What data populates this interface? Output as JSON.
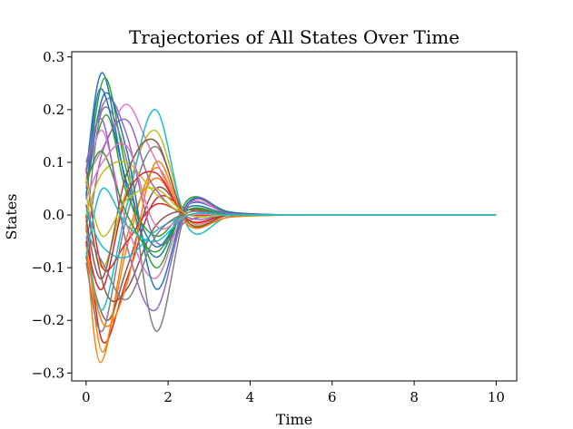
{
  "chart_data": {
    "type": "line",
    "title": "Trajectories of All States Over Time",
    "xlabel": "Time",
    "ylabel": "States",
    "xlim": [
      -0.35,
      10.5
    ],
    "ylim": [
      -0.315,
      0.31
    ],
    "xticks": [
      0,
      2,
      4,
      6,
      8,
      10
    ],
    "xtick_labels": [
      "0",
      "2",
      "4",
      "6",
      "8",
      "10"
    ],
    "yticks": [
      -0.3,
      -0.2,
      -0.1,
      0.0,
      0.1,
      0.2,
      0.3
    ],
    "ytick_labels": [
      "−0.3",
      "−0.2",
      "−0.1",
      "0.0",
      "0.1",
      "0.2",
      "0.3"
    ],
    "grid": false,
    "legend": "none",
    "series_palette": [
      "#1f77b4",
      "#ff7f0e",
      "#2ca02c",
      "#d62728",
      "#9467bd",
      "#8c564b",
      "#e377c2",
      "#7f7f7f",
      "#bcbd22",
      "#17becf"
    ],
    "series": [
      {
        "x": [
          0,
          0.4,
          1.0,
          1.7,
          2.5,
          3.5,
          5.0,
          7.0,
          10.0
        ],
        "y": [
          0.08,
          0.27,
          0.05,
          -0.08,
          0.02,
          0.005,
          0.0,
          0.0,
          0.0
        ]
      },
      {
        "x": [
          0,
          0.35,
          1.0,
          1.7,
          2.5,
          3.5,
          5.0,
          7.0,
          10.0
        ],
        "y": [
          -0.05,
          -0.28,
          -0.06,
          0.09,
          -0.02,
          -0.004,
          0.0,
          0.0,
          0.0
        ]
      },
      {
        "x": [
          0,
          0.45,
          1.0,
          1.7,
          2.5,
          3.5,
          5.0,
          7.0,
          10.0
        ],
        "y": [
          0.05,
          0.26,
          0.08,
          -0.1,
          0.03,
          0.006,
          0.0,
          0.0,
          0.0
        ]
      },
      {
        "x": [
          0,
          0.4,
          1.0,
          1.7,
          2.5,
          3.5,
          5.0,
          7.0,
          10.0
        ],
        "y": [
          0.0,
          -0.24,
          -0.12,
          0.03,
          0.01,
          0.0,
          0.0,
          0.0,
          0.0
        ]
      },
      {
        "x": [
          0,
          0.5,
          1.0,
          1.7,
          2.5,
          3.5,
          5.0,
          7.0,
          10.0
        ],
        "y": [
          0.1,
          0.22,
          0.15,
          -0.05,
          -0.01,
          0.0,
          0.0,
          0.0,
          0.0
        ]
      },
      {
        "x": [
          0,
          0.5,
          1.0,
          1.7,
          2.5,
          3.5,
          5.0,
          7.0,
          10.0
        ],
        "y": [
          -0.08,
          -0.2,
          -0.1,
          0.05,
          0.0,
          0.0,
          0.0,
          0.0,
          0.0
        ]
      },
      {
        "x": [
          0,
          0.5,
          1.0,
          1.6,
          2.5,
          3.5,
          5.0,
          7.0,
          10.0
        ],
        "y": [
          0.07,
          0.14,
          0.21,
          0.12,
          -0.01,
          0.0,
          0.0,
          0.0,
          0.0
        ]
      },
      {
        "x": [
          0,
          0.4,
          1.0,
          1.7,
          2.5,
          3.5,
          5.0,
          7.0,
          10.0
        ],
        "y": [
          -0.03,
          0.2,
          0.1,
          -0.22,
          0.02,
          0.004,
          0.0,
          0.0,
          0.0
        ]
      },
      {
        "x": [
          0,
          0.4,
          1.0,
          1.7,
          2.5,
          3.5,
          5.0,
          7.0,
          10.0
        ],
        "y": [
          0.04,
          -0.1,
          0.05,
          0.16,
          -0.01,
          0.0,
          0.0,
          0.0,
          0.0
        ]
      },
      {
        "x": [
          0,
          0.4,
          1.0,
          1.7,
          2.5,
          3.5,
          5.0,
          7.0,
          10.0
        ],
        "y": [
          -0.04,
          -0.18,
          0.02,
          0.2,
          -0.025,
          -0.003,
          0.0,
          0.0,
          0.0
        ]
      },
      {
        "x": [
          0,
          0.35,
          1.0,
          1.7,
          2.5,
          3.5,
          5.0,
          7.0,
          10.0
        ],
        "y": [
          0.03,
          0.24,
          0.06,
          -0.06,
          0.015,
          0.002,
          0.0,
          0.0,
          0.0
        ]
      },
      {
        "x": [
          0,
          0.4,
          1.0,
          1.7,
          2.5,
          3.5,
          5.0,
          7.0,
          10.0
        ],
        "y": [
          -0.02,
          -0.26,
          -0.04,
          0.07,
          -0.01,
          0.0,
          0.0,
          0.0,
          0.0
        ]
      },
      {
        "x": [
          0,
          0.5,
          1.0,
          1.7,
          2.5,
          3.5,
          5.0,
          7.0,
          10.0
        ],
        "y": [
          0.06,
          0.19,
          0.04,
          -0.04,
          0.01,
          0.0,
          0.0,
          0.0,
          0.0
        ]
      },
      {
        "x": [
          0,
          0.4,
          1.0,
          1.7,
          2.5,
          3.5,
          5.0,
          7.0,
          10.0
        ],
        "y": [
          0.09,
          -0.1,
          -0.05,
          0.02,
          0.0,
          0.0,
          0.0,
          0.0,
          0.0
        ]
      },
      {
        "x": [
          0,
          0.4,
          1.0,
          1.6,
          2.5,
          3.5,
          5.0,
          7.0,
          10.0
        ],
        "y": [
          -0.06,
          0.12,
          0.18,
          0.06,
          -0.005,
          0.0,
          0.0,
          0.0,
          0.0
        ]
      },
      {
        "x": [
          0,
          0.5,
          1.0,
          1.7,
          2.5,
          3.5,
          5.0,
          7.0,
          10.0
        ],
        "y": [
          0.02,
          -0.15,
          -0.14,
          -0.02,
          0.01,
          0.0,
          0.0,
          0.0,
          0.0
        ]
      },
      {
        "x": [
          0,
          0.4,
          1.0,
          1.7,
          2.5,
          3.5,
          5.0,
          7.0,
          10.0
        ],
        "y": [
          0.05,
          0.16,
          -0.02,
          -0.12,
          0.02,
          0.003,
          0.0,
          0.0,
          0.0
        ]
      },
      {
        "x": [
          0,
          0.4,
          1.0,
          1.7,
          2.5,
          3.5,
          5.0,
          7.0,
          10.0
        ],
        "y": [
          -0.09,
          -0.22,
          0.0,
          0.13,
          -0.015,
          0.0,
          0.0,
          0.0,
          0.0
        ]
      },
      {
        "x": [
          0,
          0.4,
          1.0,
          1.7,
          2.5,
          3.5,
          5.0,
          7.0,
          10.0
        ],
        "y": [
          0.0,
          0.08,
          0.1,
          0.04,
          0.0,
          0.0,
          0.0,
          0.0,
          0.0
        ]
      },
      {
        "x": [
          0,
          0.4,
          1.0,
          1.7,
          2.5,
          3.5,
          5.0,
          7.0,
          10.0
        ],
        "y": [
          0.01,
          -0.06,
          -0.08,
          -0.03,
          0.0,
          0.0,
          0.0,
          0.0,
          0.0
        ]
      },
      {
        "x": [
          0,
          0.45,
          1.0,
          1.7,
          2.5,
          3.5,
          5.0,
          7.0,
          10.0
        ],
        "y": [
          0.04,
          0.23,
          0.12,
          -0.14,
          0.025,
          0.005,
          0.0,
          0.0,
          0.0
        ]
      },
      {
        "x": [
          0,
          0.45,
          1.0,
          1.7,
          2.5,
          3.5,
          5.0,
          7.0,
          10.0
        ],
        "y": [
          -0.07,
          -0.21,
          -0.13,
          0.1,
          -0.02,
          -0.004,
          0.0,
          0.0,
          0.0
        ]
      },
      {
        "x": [
          0,
          0.4,
          1.0,
          1.7,
          2.5,
          3.5,
          5.0,
          7.0,
          10.0
        ],
        "y": [
          0.06,
          0.12,
          0.0,
          -0.07,
          0.01,
          0.0,
          0.0,
          0.0,
          0.0
        ]
      },
      {
        "x": [
          0,
          0.4,
          1.0,
          1.7,
          2.5,
          3.5,
          5.0,
          7.0,
          10.0
        ],
        "y": [
          -0.05,
          -0.14,
          0.04,
          0.08,
          -0.01,
          0.0,
          0.0,
          0.0,
          0.0
        ]
      },
      {
        "x": [
          0,
          0.4,
          1.0,
          1.7,
          2.5,
          3.5,
          5.0,
          7.0,
          10.0
        ],
        "y": [
          0.08,
          0.18,
          -0.06,
          -0.18,
          0.02,
          0.003,
          0.0,
          0.0,
          0.0
        ]
      },
      {
        "x": [
          0,
          0.4,
          1.0,
          1.7,
          2.5,
          3.5,
          5.0,
          7.0,
          10.0
        ],
        "y": [
          -0.01,
          -0.12,
          0.08,
          0.14,
          -0.015,
          0.0,
          0.0,
          0.0,
          0.0
        ]
      },
      {
        "x": [
          0,
          0.4,
          1.0,
          1.7,
          2.5,
          3.5,
          5.0,
          7.0,
          10.0
        ],
        "y": [
          0.03,
          0.1,
          0.13,
          -0.02,
          0.0,
          0.0,
          0.0,
          0.0,
          0.0
        ]
      },
      {
        "x": [
          0,
          0.4,
          1.0,
          1.7,
          2.5,
          3.5,
          5.0,
          7.0,
          10.0
        ],
        "y": [
          -0.03,
          -0.09,
          -0.16,
          -0.04,
          0.005,
          0.0,
          0.0,
          0.0,
          0.0
        ]
      },
      {
        "x": [
          0,
          0.4,
          1.0,
          1.7,
          2.5,
          3.5,
          5.0,
          7.0,
          10.0
        ],
        "y": [
          0.07,
          -0.04,
          0.03,
          0.05,
          0.0,
          0.0,
          0.0,
          0.0,
          0.0
        ]
      },
      {
        "x": [
          0,
          0.4,
          1.0,
          1.7,
          2.5,
          3.5,
          5.0,
          7.0,
          10.0
        ],
        "y": [
          -0.08,
          0.05,
          -0.02,
          -0.05,
          0.0,
          0.0,
          0.0,
          0.0,
          0.0
        ]
      }
    ]
  }
}
